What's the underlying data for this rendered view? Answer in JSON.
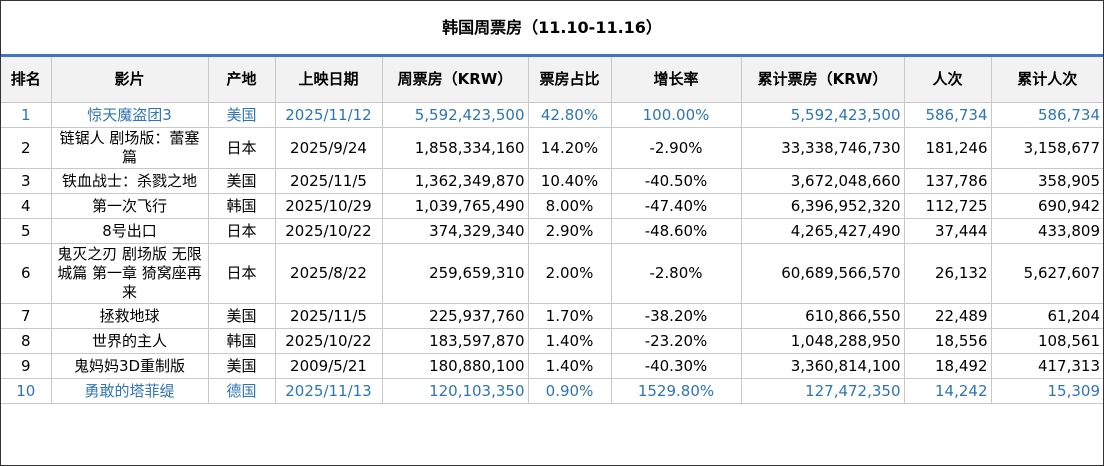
{
  "title": "韩国周票房（11.10-11.16）",
  "table": {
    "headers": [
      "排名",
      "影片",
      "产地",
      "上映日期",
      "周票房（KRW）",
      "票房占比",
      "增长率",
      "累计票房（KRW）",
      "人次",
      "累计人次"
    ],
    "rows": [
      [
        "1",
        "惊天魔盗团3",
        "美国",
        "2025/11/12",
        "5,592,423,500",
        "42.80%",
        "100.00%",
        "5,592,423,500",
        "586,734",
        "586,734"
      ],
      [
        "2",
        "链锯人 剧场版：蕾塞篇",
        "日本",
        "2025/9/24",
        "1,858,334,160",
        "14.20%",
        "-2.90%",
        "33,338,746,730",
        "181,246",
        "3,158,677"
      ],
      [
        "3",
        "铁血战士：杀戮之地",
        "美国",
        "2025/11/5",
        "1,362,349,870",
        "10.40%",
        "-40.50%",
        "3,672,048,660",
        "137,786",
        "358,905"
      ],
      [
        "4",
        "第一次飞行",
        "韩国",
        "2025/10/29",
        "1,039,765,490",
        "8.00%",
        "-47.40%",
        "6,396,952,320",
        "112,725",
        "690,942"
      ],
      [
        "5",
        "8号出口",
        "日本",
        "2025/10/22",
        "374,329,340",
        "2.90%",
        "-48.60%",
        "4,265,427,490",
        "37,444",
        "433,809"
      ],
      [
        "6",
        "鬼灭之刃 剧场版 无限城篇 第一章 猗窝座再来",
        "日本",
        "2025/8/22",
        "259,659,310",
        "2.00%",
        "-2.80%",
        "60,689,566,570",
        "26,132",
        "5,627,607"
      ],
      [
        "7",
        "拯救地球",
        "美国",
        "2025/11/5",
        "225,937,760",
        "1.70%",
        "-38.20%",
        "610,866,550",
        "22,489",
        "61,204"
      ],
      [
        "8",
        "世界的主人",
        "韩国",
        "2025/10/22",
        "183,597,870",
        "1.40%",
        "-23.20%",
        "1,048,288,950",
        "18,556",
        "108,561"
      ],
      [
        "9",
        "鬼妈妈3D重制版",
        "美国",
        "2009/5/21",
        "180,880,100",
        "1.40%",
        "-40.30%",
        "3,360,814,100",
        "18,492",
        "417,313"
      ],
      [
        "10",
        "勇敢的塔菲缇",
        "德国",
        "2025/11/13",
        "120,103,350",
        "0.90%",
        "1529.80%",
        "127,472,350",
        "14,242",
        "15,309"
      ]
    ]
  }
}
